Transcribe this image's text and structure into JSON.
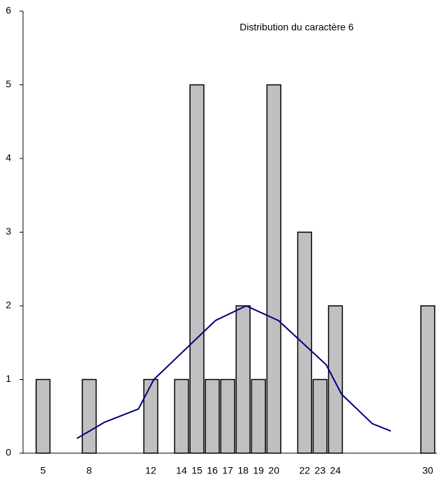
{
  "chart_data": {
    "type": "bar",
    "title": "Distribution du caractère 6",
    "x": [
      5,
      8,
      12,
      14,
      15,
      16,
      17,
      18,
      19,
      20,
      22,
      23,
      24,
      30
    ],
    "values": [
      1,
      1,
      1,
      1,
      5,
      1,
      1,
      2,
      1,
      5,
      3,
      1,
      2,
      2
    ],
    "color": "#c0c0c0",
    "xlim": [
      3.7,
      30.6
    ],
    "ylim": [
      0,
      6
    ],
    "yticks": [
      0,
      1,
      2,
      3,
      4,
      5,
      6
    ],
    "grid": false,
    "line": {
      "color": "#000080",
      "x": [
        7.2,
        9,
        11.2,
        12.2,
        16.2,
        18.2,
        20.3,
        23.4,
        24.4,
        26.4,
        27.6
      ],
      "values": [
        0.2,
        0.42,
        0.6,
        1.0,
        1.8,
        2.0,
        1.8,
        1.2,
        0.8,
        0.4,
        0.3
      ]
    }
  }
}
